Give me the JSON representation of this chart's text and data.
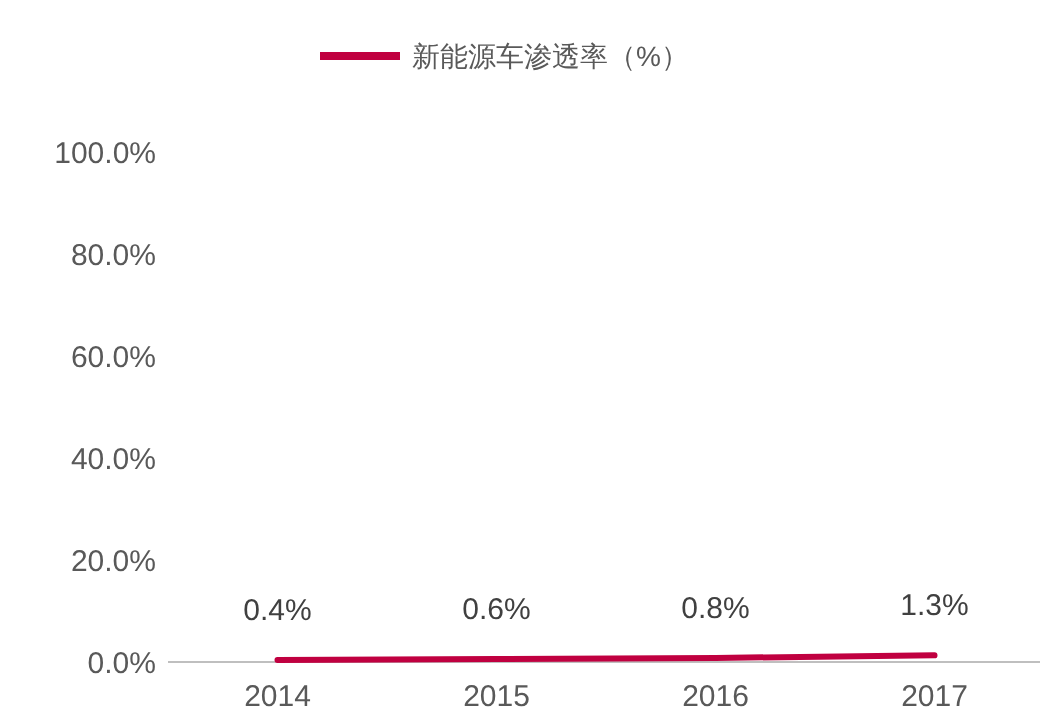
{
  "chart_data": {
    "type": "line",
    "categories": [
      "2014",
      "2015",
      "2016",
      "2017"
    ],
    "series": [
      {
        "name": "新能源车渗透率（%）",
        "color": "#c00040",
        "values": [
          0.4,
          0.6,
          0.8,
          1.3
        ],
        "value_labels": [
          "0.4%",
          "0.6%",
          "0.8%",
          "1.3%"
        ]
      }
    ],
    "ylim": [
      0,
      100
    ],
    "yticks": [
      {
        "value": 0,
        "label": "0.0%"
      },
      {
        "value": 20,
        "label": "20.0%"
      },
      {
        "value": 40,
        "label": "40.0%"
      },
      {
        "value": 60,
        "label": "60.0%"
      },
      {
        "value": 80,
        "label": "80.0%"
      },
      {
        "value": 100,
        "label": "100.0%"
      }
    ],
    "grid": false,
    "legend": "top",
    "marker": "none",
    "line_style": "solid"
  }
}
